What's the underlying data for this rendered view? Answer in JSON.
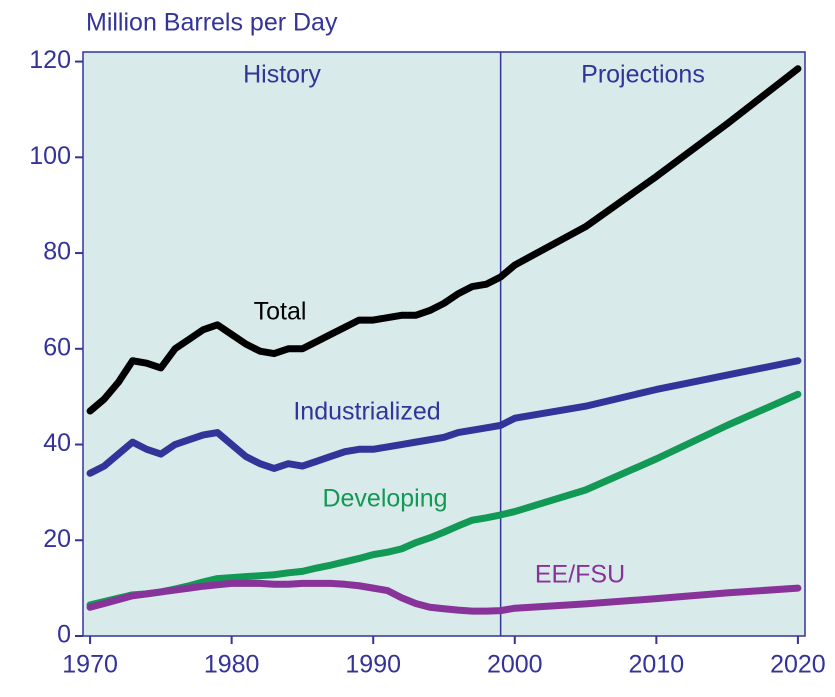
{
  "chart_data": {
    "type": "line",
    "y_axis_label": "Million Barrels per Day",
    "annotations": [
      "History",
      "Projections"
    ],
    "divider_x": 1999,
    "x": [
      1970,
      1971,
      1972,
      1973,
      1974,
      1975,
      1976,
      1977,
      1978,
      1979,
      1980,
      1981,
      1982,
      1983,
      1984,
      1985,
      1986,
      1987,
      1988,
      1989,
      1990,
      1991,
      1992,
      1993,
      1994,
      1995,
      1996,
      1997,
      1998,
      1999,
      2000,
      2005,
      2010,
      2015,
      2020
    ],
    "series": [
      {
        "name": "Total",
        "color": "#000000",
        "values": [
          47,
          49.5,
          53,
          57.5,
          57,
          56,
          60,
          62,
          64,
          65,
          63,
          61,
          59.5,
          59,
          60,
          60,
          61.5,
          63,
          64.5,
          66,
          66,
          66.5,
          67,
          67,
          68,
          69.5,
          71.5,
          73,
          73.5,
          75,
          77.5,
          85.5,
          96,
          107,
          118.5
        ]
      },
      {
        "name": "Industrialized",
        "color": "#333399",
        "values": [
          34,
          35.5,
          38,
          40.5,
          39,
          38,
          40,
          41,
          42,
          42.5,
          40,
          37.5,
          36,
          35,
          36,
          35.5,
          36.5,
          37.5,
          38.5,
          39,
          39,
          39.5,
          40,
          40.5,
          41,
          41.5,
          42.5,
          43,
          43.5,
          44,
          45.5,
          48,
          51.5,
          54.5,
          57.5
        ]
      },
      {
        "name": "Developing",
        "color": "#119955",
        "values": [
          6.5,
          7.2,
          7.9,
          8.6,
          8.8,
          9.2,
          9.8,
          10.5,
          11.3,
          12,
          12.2,
          12.4,
          12.6,
          12.8,
          13.2,
          13.5,
          14.2,
          14.8,
          15.5,
          16.2,
          17,
          17.5,
          18.2,
          19.5,
          20.5,
          21.7,
          23,
          24.2,
          24.7,
          25.3,
          26,
          30.5,
          37,
          44,
          50.5
        ]
      },
      {
        "name": "EE/FSU",
        "color": "#883399",
        "values": [
          6,
          6.8,
          7.6,
          8.4,
          8.8,
          9.2,
          9.6,
          10,
          10.4,
          10.7,
          11,
          11,
          11,
          10.8,
          10.8,
          11,
          11,
          11,
          10.8,
          10.5,
          10,
          9.5,
          8,
          6.8,
          6,
          5.7,
          5.4,
          5.2,
          5.2,
          5.3,
          5.8,
          6.7,
          7.8,
          9,
          10
        ]
      }
    ],
    "xlim": [
      1969.5,
      2020.5
    ],
    "xticks": [
      1970,
      1980,
      1990,
      2000,
      2010,
      2020
    ],
    "ylim": [
      0,
      122
    ],
    "yticks": [
      0,
      20,
      40,
      60,
      80,
      100,
      120
    ],
    "background": "#d9eaea"
  }
}
